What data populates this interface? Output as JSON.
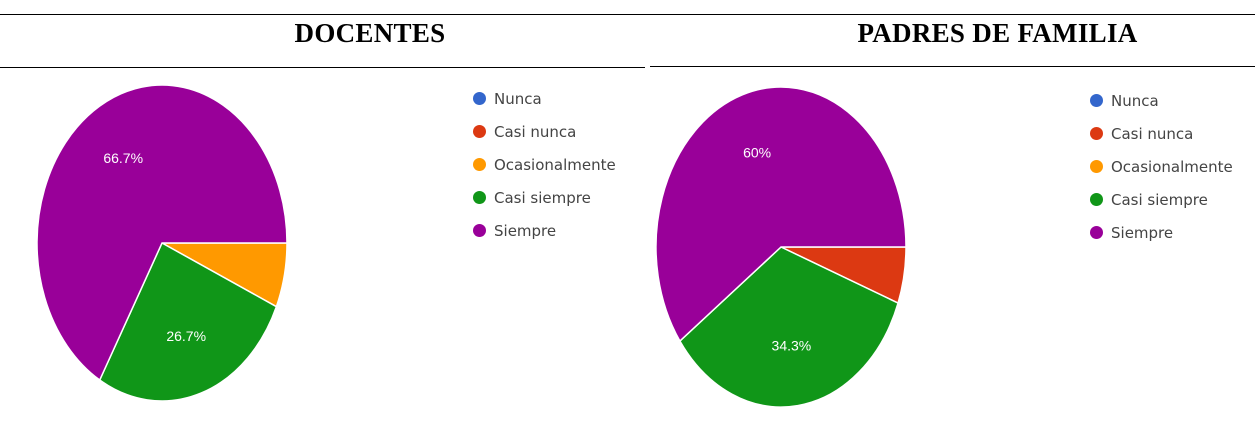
{
  "headings": {
    "left": "DOCENTES",
    "right": "PADRES DE FAMILIA"
  },
  "legend_colors": {
    "Nunca": "#3366cc",
    "Casi nunca": "#dc3912",
    "Ocasionalmente": "#ff9900",
    "Casi siempre": "#109618",
    "Siempre": "#990099"
  },
  "chart_data": [
    {
      "type": "pie",
      "title": "DOCENTES",
      "categories": [
        "Nunca",
        "Casi nunca",
        "Ocasionalmente",
        "Casi siempre",
        "Siempre"
      ],
      "values": [
        0,
        0,
        6.6,
        26.7,
        66.7
      ],
      "data_labels": [
        "",
        "",
        "",
        "26.7%",
        "66.7%"
      ],
      "legend_position": "right"
    },
    {
      "type": "pie",
      "title": "PADRES DE FAMILIA",
      "categories": [
        "Nunca",
        "Casi nunca",
        "Ocasionalmente",
        "Casi siempre",
        "Siempre"
      ],
      "values": [
        0,
        5.7,
        0,
        34.3,
        60
      ],
      "data_labels": [
        "",
        "",
        "",
        "34.3%",
        "60%"
      ],
      "legend_position": "right"
    }
  ]
}
